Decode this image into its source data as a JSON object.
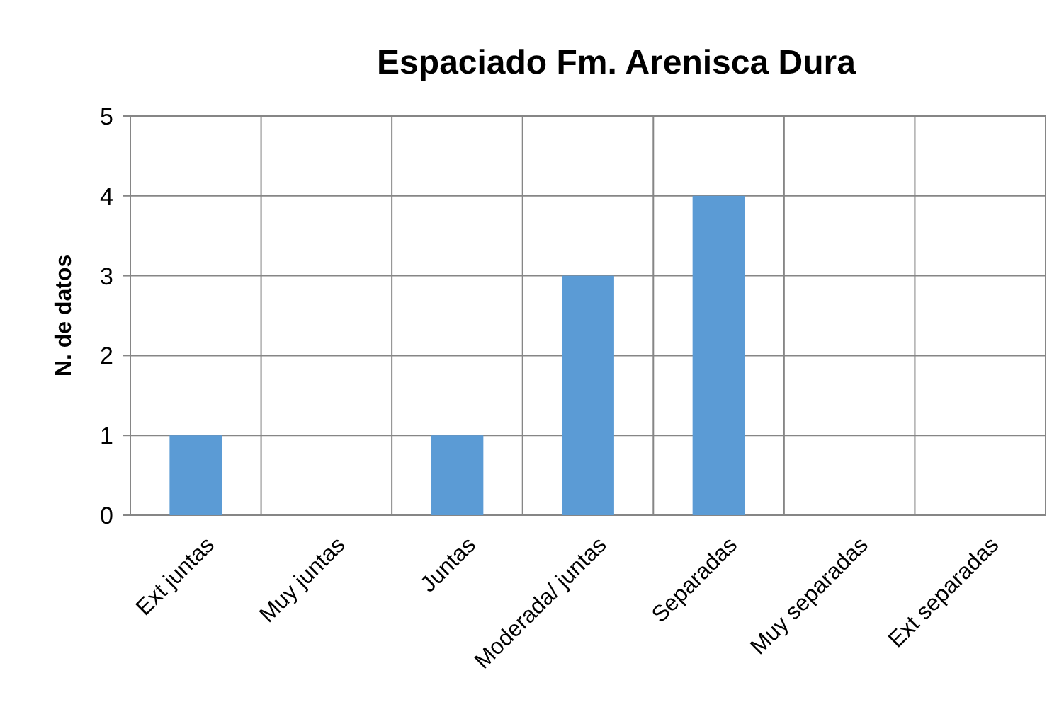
{
  "chart_data": {
    "type": "bar",
    "title": "Espaciado Fm. Arenisca Dura",
    "ylabel": "N. de datos",
    "categories": [
      "Ext juntas",
      "Muy juntas",
      "Juntas",
      "Moderada/ juntas",
      "Separadas",
      "Muy separadas",
      "Ext separadas"
    ],
    "values": [
      1,
      0,
      1,
      3,
      4,
      0,
      0
    ],
    "color": "#5b9bd5",
    "ylim": [
      0,
      5
    ],
    "yticks": [
      0,
      1,
      2,
      3,
      4,
      5
    ],
    "grid": true
  }
}
